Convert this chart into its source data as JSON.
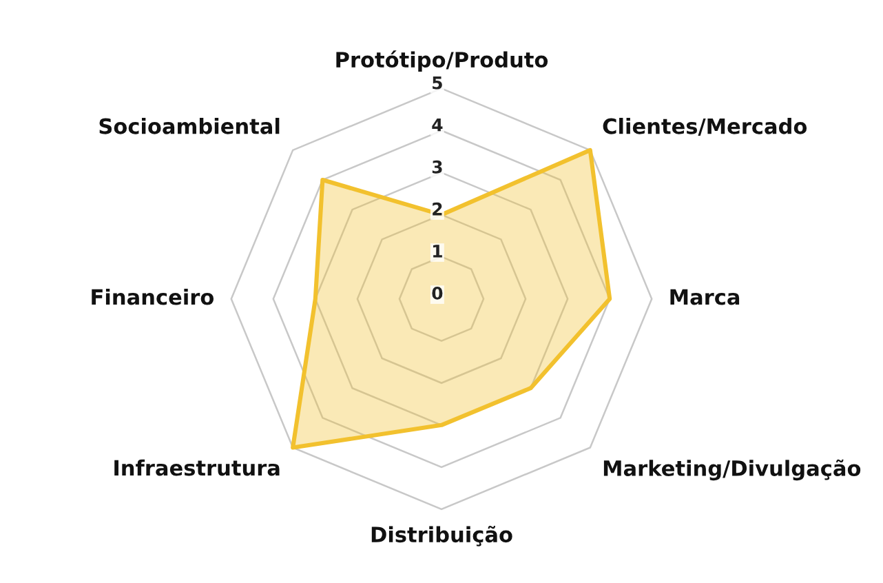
{
  "chart_data": {
    "type": "radar",
    "categories": [
      "Protótipo/Produto",
      "Clientes/Mercado",
      "Marca",
      "Marketing/Divulgação",
      "Distribuição",
      "Infraestrutura",
      "Financeiro",
      "Socioambiental"
    ],
    "series": [
      {
        "color": "#f2c12e",
        "values": [
          2,
          5,
          4,
          3,
          3,
          5,
          3,
          4
        ]
      }
    ],
    "ylim": [
      0,
      5
    ],
    "yticks": [
      0,
      1,
      2,
      3,
      4,
      5
    ],
    "grid": true
  }
}
